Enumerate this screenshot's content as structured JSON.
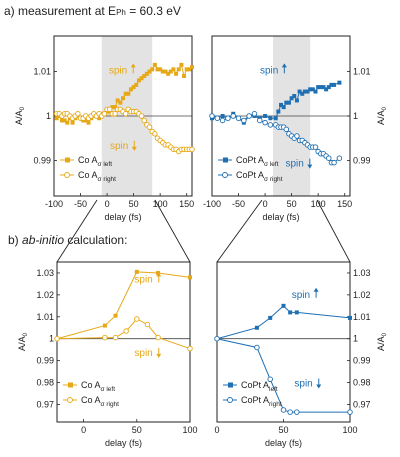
{
  "figure": {
    "label_a_prefix": "a) measurement at E",
    "label_a_sub": "Ph",
    "label_a_suffix": " = 60.3 eV",
    "label_b_prefix": "b) ",
    "label_b_italic": "ab-initio",
    "label_b_suffix": " calculation:"
  },
  "colors": {
    "co": "#e6a817",
    "copt": "#1f6fb3",
    "shade": "#e3e3e3",
    "axis": "#222222"
  },
  "chart_data": [
    {
      "id": "measured-co",
      "type": "line",
      "xlabel": "delay (fs)",
      "ylabel": "A/A0",
      "xlim": [
        -100,
        160
      ],
      "ylim": [
        0.982,
        1.018
      ],
      "xticks": [
        -100,
        -50,
        0,
        50,
        100,
        150
      ],
      "yticks": [
        0.99,
        1,
        1.01
      ],
      "ytick_labels": [
        "0.99",
        "1",
        "1.01"
      ],
      "yaxis_side": "left",
      "shaded_range": [
        -10,
        85
      ],
      "annotations": [
        {
          "text": "spin",
          "arrow": "up",
          "x": 38,
          "y": 1.0105
        },
        {
          "text": "spin",
          "arrow": "down",
          "x": 40,
          "y": 0.9935
        }
      ],
      "series": [
        {
          "name": "Co A",
          "name_sub": "σ left",
          "marker": "filled-square",
          "x": [
            -95,
            -90,
            -85,
            -80,
            -75,
            -70,
            -65,
            -60,
            -55,
            -50,
            -45,
            -40,
            -35,
            -30,
            -25,
            -20,
            -15,
            -10,
            -5,
            0,
            5,
            10,
            15,
            20,
            25,
            30,
            35,
            40,
            45,
            50,
            55,
            60,
            65,
            70,
            75,
            80,
            85,
            90,
            95,
            100,
            105,
            110,
            115,
            120,
            125,
            130,
            135,
            140,
            145,
            150,
            155,
            160
          ],
          "values": [
            0.9995,
            1.0,
            0.999,
            0.999,
            0.9985,
            0.9995,
            0.9985,
            0.9995,
            1.0,
            0.9995,
            0.999,
            0.999,
            0.9985,
            0.9995,
            1.0,
            1.0,
            0.9995,
            1.0005,
            1.0005,
            1.001,
            1.001,
            1.002,
            1.002,
            1.0035,
            1.003,
            1.004,
            1.005,
            1.005,
            1.006,
            1.0065,
            1.007,
            1.008,
            1.0085,
            1.009,
            1.0095,
            1.01,
            1.0105,
            1.0115,
            1.0105,
            1.0105,
            1.01,
            1.01,
            1.0095,
            1.01,
            1.0105,
            1.0095,
            1.0105,
            1.0115,
            1.009,
            1.0105,
            1.0105,
            1.011
          ]
        },
        {
          "name": "Co A",
          "name_sub": "σ right",
          "marker": "open-circle",
          "x": [
            -95,
            -90,
            -85,
            -80,
            -75,
            -70,
            -65,
            -60,
            -55,
            -50,
            -45,
            -40,
            -35,
            -30,
            -25,
            -20,
            -15,
            -10,
            -5,
            0,
            5,
            10,
            15,
            20,
            25,
            30,
            35,
            40,
            45,
            50,
            55,
            60,
            65,
            70,
            75,
            80,
            85,
            90,
            95,
            100,
            105,
            110,
            115,
            120,
            125,
            130,
            135,
            140,
            145,
            150,
            155,
            160
          ],
          "values": [
            1.0005,
            1.0005,
            1.0,
            1.0005,
            1.0005,
            1.0,
            0.9995,
            1.0,
            1.0005,
            0.9995,
            0.9995,
            1.0,
            0.9995,
            1.0,
            1.0005,
            1.0,
            1.0005,
            1.0,
            1.0005,
            1.0015,
            1.0015,
            1.0005,
            1.0005,
            1.0015,
            1.0015,
            1.001,
            1.0005,
            1.0015,
            1.001,
            1.001,
            1.001,
            1.0005,
            1.0,
            0.999,
            0.998,
            0.9975,
            0.9965,
            0.996,
            0.995,
            0.9945,
            0.994,
            0.9935,
            0.9935,
            0.993,
            0.9925,
            0.9925,
            0.992,
            0.9925,
            0.9925,
            0.9925,
            0.9925,
            0.9925
          ]
        }
      ]
    },
    {
      "id": "measured-copt",
      "type": "line",
      "xlabel": "delay (fs)",
      "ylabel": "A/A0",
      "xlim": [
        -100,
        160
      ],
      "ylim": [
        0.982,
        1.018
      ],
      "xticks": [
        -100,
        -50,
        0,
        50,
        100,
        150
      ],
      "yticks": [
        0.99,
        1,
        1.01
      ],
      "ytick_labels": [
        "0.99",
        "1",
        "1.01"
      ],
      "yaxis_side": "right",
      "shaded_range": [
        15,
        85
      ],
      "annotations": [
        {
          "text": "spin",
          "arrow": "up",
          "x": 25,
          "y": 1.0105
        },
        {
          "text": "spin",
          "arrow": "down",
          "x": 73,
          "y": 0.9895
        }
      ],
      "series": [
        {
          "name": "CoPt A",
          "name_sub": "σ left",
          "marker": "filled-square",
          "x": [
            -100,
            -90,
            -80,
            -70,
            -60,
            -50,
            -40,
            -30,
            -20,
            -10,
            0,
            10,
            20,
            25,
            30,
            35,
            40,
            45,
            50,
            55,
            60,
            65,
            70,
            75,
            80,
            85,
            90,
            95,
            100,
            105,
            110,
            115,
            120,
            125,
            130,
            140
          ],
          "values": [
            0.9995,
            0.9995,
            1.0,
            0.9995,
            1.0005,
            0.9995,
            0.9985,
            1.0,
            1.0,
            0.9995,
            1.0,
            0.9995,
            0.9995,
            1.001,
            1.0025,
            1.002,
            1.003,
            1.003,
            1.004,
            1.0045,
            1.0035,
            1.0055,
            1.005,
            1.0055,
            1.0055,
            1.006,
            1.006,
            1.0055,
            1.0065,
            1.0065,
            1.0065,
            1.006,
            1.0065,
            1.007,
            1.007,
            1.0075
          ]
        },
        {
          "name": "CoPt A",
          "name_sub": "σ right",
          "marker": "open-circle",
          "x": [
            -100,
            -90,
            -80,
            -70,
            -60,
            -50,
            -40,
            -30,
            -20,
            -10,
            0,
            10,
            20,
            25,
            30,
            35,
            40,
            45,
            50,
            55,
            60,
            65,
            70,
            75,
            80,
            85,
            90,
            95,
            100,
            105,
            110,
            115,
            120,
            125,
            130,
            140
          ],
          "values": [
            1.0,
            0.9995,
            0.999,
            0.9995,
            1.0,
            0.9995,
            0.999,
            1.0,
            1.0005,
            0.999,
            0.9985,
            0.998,
            0.998,
            0.9975,
            0.9975,
            0.9975,
            0.997,
            0.996,
            0.9955,
            0.995,
            0.9955,
            0.9945,
            0.9945,
            0.994,
            0.9935,
            0.993,
            0.993,
            0.993,
            0.992,
            0.9915,
            0.9915,
            0.991,
            0.9905,
            0.9895,
            0.9895,
            0.9905
          ]
        }
      ]
    },
    {
      "id": "calc-co",
      "type": "line",
      "xlabel": "delay (fs)",
      "ylabel": "A/A0",
      "xlim": [
        -25,
        100
      ],
      "ylim": [
        0.962,
        1.035
      ],
      "xticks": [
        0,
        50,
        100
      ],
      "yticks": [
        0.97,
        0.98,
        0.99,
        1,
        1.01,
        1.02,
        1.03
      ],
      "ytick_labels": [
        "0.97",
        "0.98",
        "0.99",
        "1",
        "1.01",
        "1.02",
        "1.03"
      ],
      "yaxis_side": "left",
      "annotations": [
        {
          "text": "spin",
          "arrow": "up",
          "x": 65,
          "y": 1.0275
        },
        {
          "text": "spin",
          "arrow": "down",
          "x": 65,
          "y": 0.994
        }
      ],
      "series": [
        {
          "name": "Co A",
          "name_sub": "σ left",
          "marker": "filled-square",
          "x": [
            -25,
            20,
            30,
            50,
            70,
            100
          ],
          "values": [
            1.0,
            1.006,
            1.0105,
            1.0305,
            1.03,
            1.028
          ]
        },
        {
          "name": "Co A",
          "name_sub": "σ right",
          "marker": "open-circle",
          "x": [
            -25,
            20,
            30,
            40,
            50,
            60,
            70,
            100
          ],
          "values": [
            1.0,
            1.0005,
            1.0005,
            1.0035,
            1.009,
            1.0065,
            1.0005,
            0.9955
          ]
        }
      ]
    },
    {
      "id": "calc-copt",
      "type": "line",
      "xlabel": "delay (fs)",
      "ylabel": "A/A0",
      "xlim": [
        0,
        100
      ],
      "ylim": [
        0.962,
        1.035
      ],
      "xticks": [
        0,
        50,
        100
      ],
      "yticks": [
        0.97,
        0.98,
        0.99,
        1,
        1.01,
        1.02,
        1.03
      ],
      "ytick_labels": [
        "0.97",
        "0.98",
        "0.99",
        "1",
        "1.01",
        "1.02",
        "1.03"
      ],
      "yaxis_side": "right",
      "annotations": [
        {
          "text": "spin",
          "arrow": "up",
          "x": 70,
          "y": 1.0205
        },
        {
          "text": "spin",
          "arrow": "down",
          "x": 72,
          "y": 0.98
        }
      ],
      "series": [
        {
          "name": "CoPt A",
          "name_sub": "left",
          "marker": "filled-square",
          "x": [
            0,
            30,
            40,
            50,
            55,
            60,
            100
          ],
          "values": [
            1.0,
            1.005,
            1.0095,
            1.015,
            1.012,
            1.012,
            1.0095
          ]
        },
        {
          "name": "CoPt A",
          "name_sub": "right",
          "marker": "open-circle",
          "x": [
            0,
            30,
            40,
            50,
            55,
            60,
            100
          ],
          "values": [
            1.0,
            0.996,
            0.9815,
            0.9675,
            0.9665,
            0.9665,
            0.9665
          ]
        }
      ]
    }
  ]
}
